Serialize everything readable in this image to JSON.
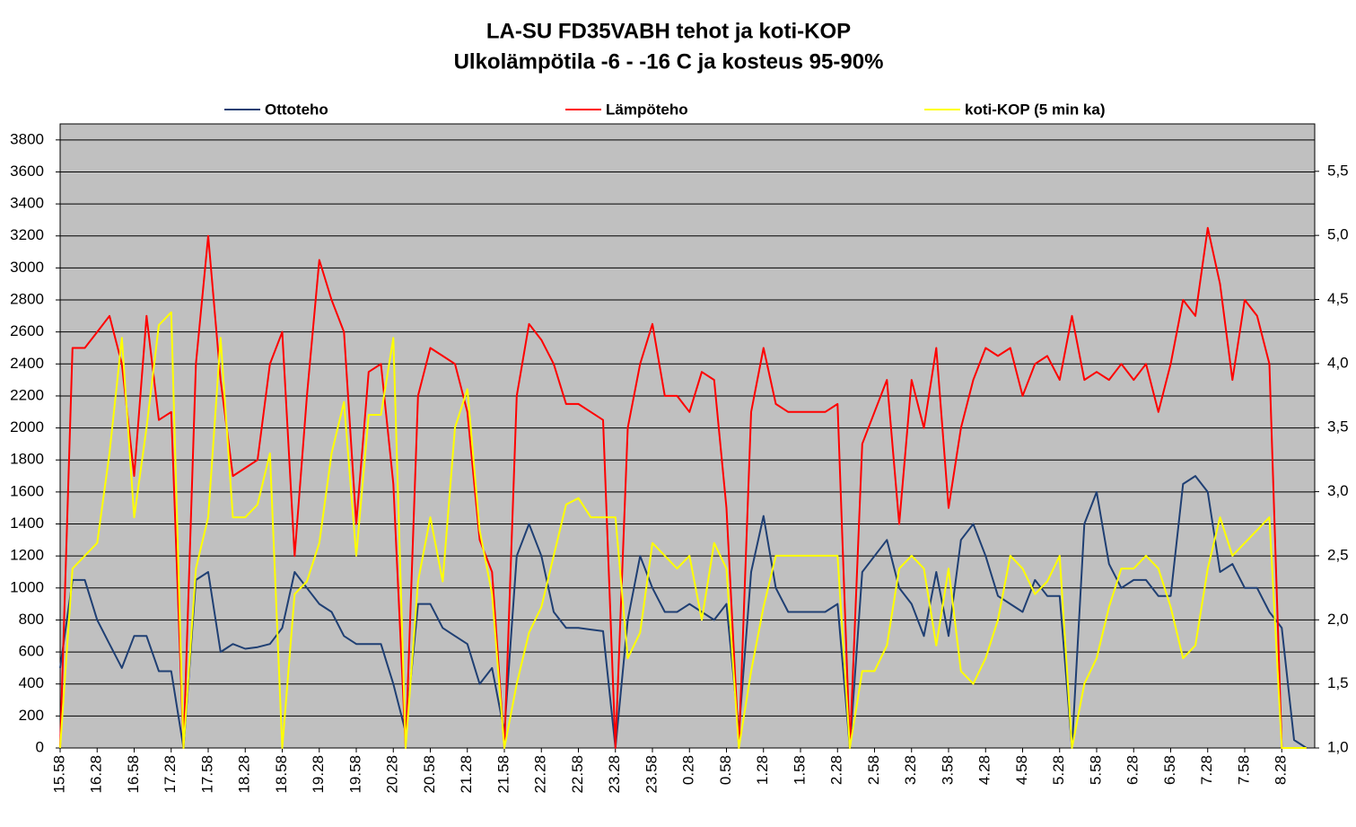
{
  "chart_data": {
    "type": "line",
    "title": "LA-SU FD35VABH tehot ja koti-KOP",
    "subtitle": "Ulkolämpötila -6 - -16 C ja kosteus 95-90%",
    "legend": "top",
    "grid": true,
    "categories": [
      "15.58",
      null,
      null,
      "16.28",
      null,
      null,
      "16.58",
      null,
      null,
      "17.28",
      null,
      null,
      "17.58",
      null,
      null,
      "18.28",
      null,
      null,
      "18.58",
      null,
      null,
      "19.28",
      null,
      null,
      "19.58",
      null,
      null,
      "20.28",
      null,
      null,
      "20.58",
      null,
      null,
      "21.28",
      null,
      null,
      "21.58",
      null,
      null,
      "22.28",
      null,
      null,
      "22.58",
      null,
      null,
      "23.28",
      null,
      null,
      "23.58",
      null,
      null,
      "0.28",
      null,
      null,
      "0.58",
      null,
      null,
      "1.28",
      null,
      null,
      "1.58",
      null,
      null,
      "2.28",
      null,
      null,
      "2.58",
      null,
      null,
      "3.28",
      null,
      null,
      "3.58",
      null,
      null,
      "4.28",
      null,
      null,
      "4.58",
      null,
      null,
      "5.28",
      null,
      null,
      "5.58",
      null,
      null,
      "6.28",
      null,
      null,
      "6.58",
      null,
      null,
      "7.28",
      null,
      null,
      "7.58",
      null,
      null,
      "8.28",
      null,
      null
    ],
    "ylim": [
      0,
      3900
    ],
    "yticks": [
      0,
      200,
      400,
      600,
      800,
      1000,
      1200,
      1400,
      1600,
      1800,
      2000,
      2200,
      2400,
      2600,
      2800,
      3000,
      3200,
      3400,
      3600,
      3800
    ],
    "y2lim": [
      1.0,
      5.87
    ],
    "y2ticks": [
      {
        "value": 1.0,
        "label": "1,0"
      },
      {
        "value": 1.5,
        "label": "1,5"
      },
      {
        "value": 2.0,
        "label": "2,0"
      },
      {
        "value": 2.5,
        "label": "2,5"
      },
      {
        "value": 3.0,
        "label": "3,0"
      },
      {
        "value": 3.5,
        "label": "3,5"
      },
      {
        "value": 4.0,
        "label": "4,0"
      },
      {
        "value": 4.5,
        "label": "4,5"
      },
      {
        "value": 5.0,
        "label": "5,0"
      },
      {
        "value": 5.5,
        "label": "5,5"
      }
    ],
    "series": [
      {
        "name": "Ottoteho",
        "color": "#1f3f73",
        "values": [
          500,
          1050,
          1050,
          800,
          650,
          500,
          700,
          700,
          480,
          480,
          0,
          1050,
          1100,
          600,
          650,
          620,
          630,
          650,
          750,
          1100,
          1000,
          900,
          850,
          700,
          650,
          650,
          650,
          400,
          100,
          900,
          900,
          750,
          700,
          650,
          400,
          500,
          100,
          1200,
          1400,
          1200,
          850,
          750,
          750,
          740,
          730,
          0,
          800,
          1200,
          1000,
          850,
          850,
          900,
          850,
          800,
          900,
          100,
          1100,
          1450,
          1000,
          850,
          850,
          850,
          850,
          900,
          0,
          1100,
          1200,
          1300,
          1000,
          900,
          700,
          1100,
          700,
          1300,
          1400,
          1200,
          950,
          900,
          850,
          1050,
          950,
          950,
          0,
          1400,
          1600,
          1150,
          1000,
          1050,
          1050,
          950,
          950,
          1650,
          1700,
          1600,
          1100,
          1150,
          1000,
          1000,
          850,
          750,
          50,
          0
        ]
      },
      {
        "name": "Lämpöteho",
        "color": "#ff0000",
        "values": [
          0,
          2500,
          2500,
          2600,
          2700,
          2400,
          1700,
          2700,
          2050,
          2100,
          0,
          2400,
          3200,
          2300,
          1700,
          1750,
          1800,
          2400,
          2600,
          1200,
          2200,
          3050,
          2800,
          2600,
          1400,
          2350,
          2400,
          1650,
          0,
          2200,
          2500,
          2450,
          2400,
          2100,
          1300,
          1100,
          0,
          2200,
          2650,
          2550,
          2400,
          2150,
          2150,
          2100,
          2050,
          0,
          2000,
          2400,
          2650,
          2200,
          2200,
          2100,
          2350,
          2300,
          1500,
          0,
          2100,
          2500,
          2150,
          2100,
          2100,
          2100,
          2100,
          2150,
          0,
          1900,
          2100,
          2300,
          1400,
          2300,
          2000,
          2500,
          1500,
          2000,
          2300,
          2500,
          2450,
          2500,
          2200,
          2400,
          2450,
          2300,
          2700,
          2300,
          2350,
          2300,
          2400,
          2300,
          2400,
          2100,
          2400,
          2800,
          2700,
          3250,
          2900,
          2300,
          2800,
          2700,
          2400,
          0,
          0,
          0
        ]
      },
      {
        "name": "koti-KOP (5 min ka)",
        "color": "#ffff00",
        "axis": "y2",
        "values": [
          1.0,
          2.4,
          2.5,
          2.6,
          3.3,
          4.2,
          2.8,
          3.5,
          4.3,
          4.4,
          1.0,
          2.4,
          2.8,
          4.2,
          2.8,
          2.8,
          2.9,
          3.3,
          1.0,
          2.2,
          2.3,
          2.6,
          3.3,
          3.7,
          2.5,
          3.6,
          3.6,
          4.2,
          1.0,
          2.3,
          2.8,
          2.3,
          3.5,
          3.8,
          2.7,
          2.2,
          1.0,
          1.5,
          1.9,
          2.1,
          2.5,
          2.9,
          2.95,
          2.8,
          2.8,
          2.8,
          1.7,
          1.9,
          2.6,
          2.5,
          2.4,
          2.5,
          2.0,
          2.6,
          2.4,
          1.0,
          1.6,
          2.1,
          2.5,
          2.5,
          2.5,
          2.5,
          2.5,
          2.5,
          1.0,
          1.6,
          1.6,
          1.8,
          2.4,
          2.5,
          2.4,
          1.8,
          2.4,
          1.6,
          1.5,
          1.7,
          2.0,
          2.5,
          2.4,
          2.2,
          2.3,
          2.5,
          1.0,
          1.5,
          1.7,
          2.1,
          2.4,
          2.4,
          2.5,
          2.4,
          2.1,
          1.7,
          1.8,
          2.4,
          2.8,
          2.5,
          2.6,
          2.7,
          2.8,
          1.0,
          1.0,
          1.0
        ]
      }
    ]
  }
}
